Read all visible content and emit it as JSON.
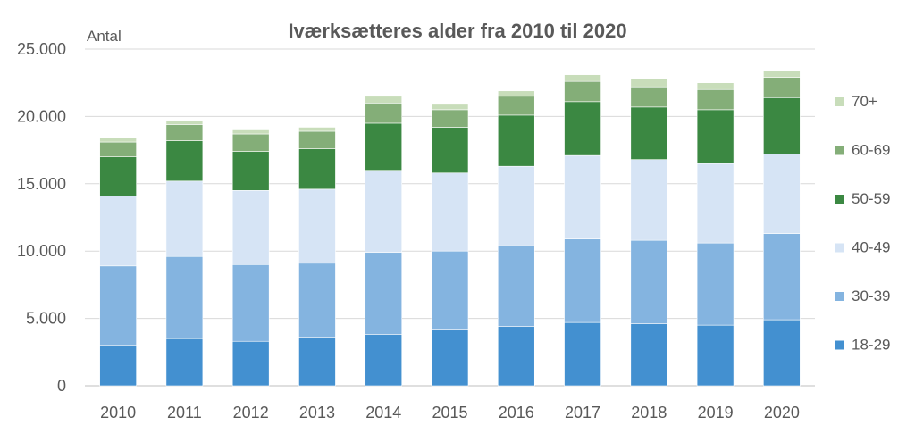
{
  "chart_data": {
    "type": "bar",
    "stacked": true,
    "title": "Iværksætteres alder fra 2010 til 2020",
    "ylabel": "Antal",
    "xlabel": "",
    "ylim": [
      0,
      25000
    ],
    "yticks": [
      "0",
      "5.000",
      "10.000",
      "15.000",
      "20.000",
      "25.000"
    ],
    "ytick_values": [
      0,
      5000,
      10000,
      15000,
      20000,
      25000
    ],
    "grid": true,
    "legend_position": "right",
    "categories": [
      "2010",
      "2011",
      "2012",
      "2013",
      "2014",
      "2015",
      "2016",
      "2017",
      "2018",
      "2019",
      "2020"
    ],
    "series": [
      {
        "name": "18-29",
        "color": "#4390D0",
        "values": [
          3000,
          3500,
          3300,
          3600,
          3800,
          4200,
          4400,
          4700,
          4600,
          4500,
          4900
        ]
      },
      {
        "name": "30-39",
        "color": "#84B4E0",
        "values": [
          5900,
          6100,
          5700,
          5500,
          6100,
          5800,
          6000,
          6200,
          6200,
          6100,
          6400
        ]
      },
      {
        "name": "40-49",
        "color": "#D6E4F5",
        "values": [
          5200,
          5600,
          5500,
          5500,
          6100,
          5800,
          5900,
          6200,
          6000,
          5900,
          5900
        ]
      },
      {
        "name": "50-59",
        "color": "#3B8842",
        "values": [
          2900,
          3000,
          2900,
          3000,
          3500,
          3400,
          3800,
          4000,
          3900,
          4000,
          4200
        ]
      },
      {
        "name": "60-69",
        "color": "#84AE78",
        "values": [
          1100,
          1200,
          1300,
          1300,
          1500,
          1300,
          1400,
          1500,
          1500,
          1500,
          1500
        ]
      },
      {
        "name": "70+",
        "color": "#C8DDBA",
        "values": [
          300,
          300,
          300,
          300,
          500,
          400,
          400,
          500,
          600,
          500,
          500
        ]
      }
    ]
  }
}
